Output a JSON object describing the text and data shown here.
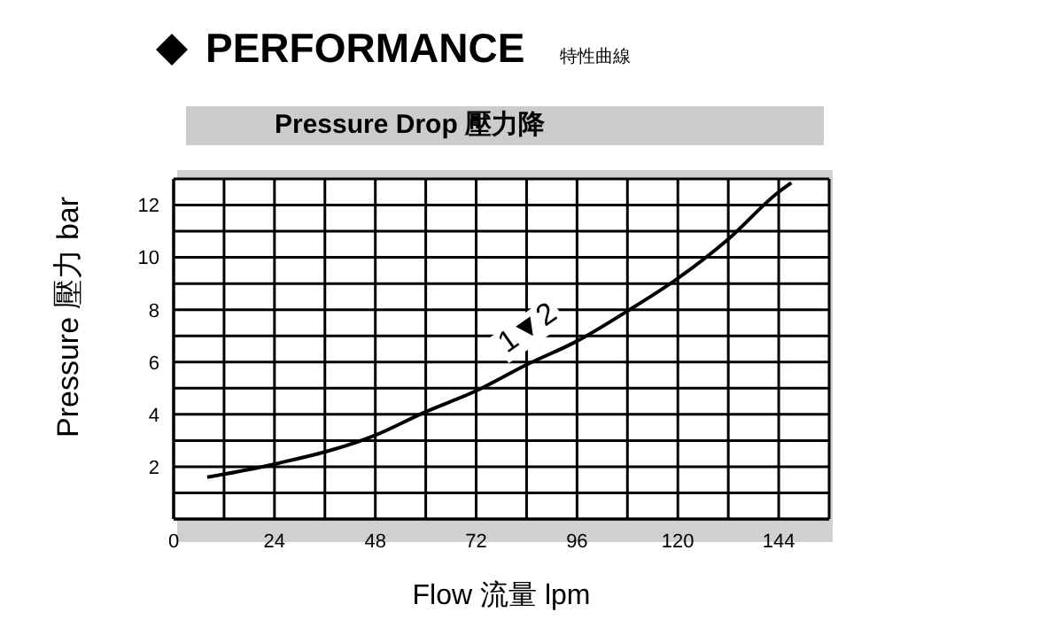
{
  "chart_data": {
    "type": "line",
    "title": "PERFORMANCE",
    "subtitle": "特性曲線",
    "annotations": [
      "Pressure Drop 壓力降",
      {
        "text": "1▼2",
        "x": 88,
        "y": 6.2
      }
    ],
    "xlabel": "Flow 流量 lpm",
    "ylabel": "Pressure 壓力 bar",
    "x": [
      8,
      24,
      48,
      60,
      72,
      84,
      96,
      108,
      120,
      132,
      144,
      147
    ],
    "series": [
      {
        "color": "#000000",
        "values": [
          1.6,
          2.1,
          3.2,
          4.1,
          4.9,
          5.9,
          6.8,
          7.95,
          9.2,
          10.7,
          12.5,
          12.85
        ]
      }
    ],
    "xlim": [
      0,
      156
    ],
    "ylim": [
      0,
      13
    ],
    "xticks": [
      0,
      {
        "value": 12,
        "label": null
      },
      24,
      {
        "value": 36,
        "label": null
      },
      48,
      {
        "value": 60,
        "label": null
      },
      72,
      {
        "value": 84,
        "label": null
      },
      96,
      {
        "value": 108,
        "label": null
      },
      120,
      {
        "value": 132,
        "label": null
      },
      144,
      {
        "value": 156,
        "label": null
      }
    ],
    "yticks": [
      {
        "value": 0,
        "label": null
      },
      {
        "value": 1,
        "label": null
      },
      2,
      {
        "value": 3,
        "label": null
      },
      4,
      {
        "value": 5,
        "label": null
      },
      6,
      {
        "value": 7,
        "label": null
      },
      8,
      {
        "value": 9,
        "label": null
      },
      10,
      {
        "value": 11,
        "label": null
      },
      12,
      {
        "value": 13,
        "label": null
      }
    ],
    "grid": true,
    "marker": "none",
    "line_style": "solid",
    "legend": false
  }
}
